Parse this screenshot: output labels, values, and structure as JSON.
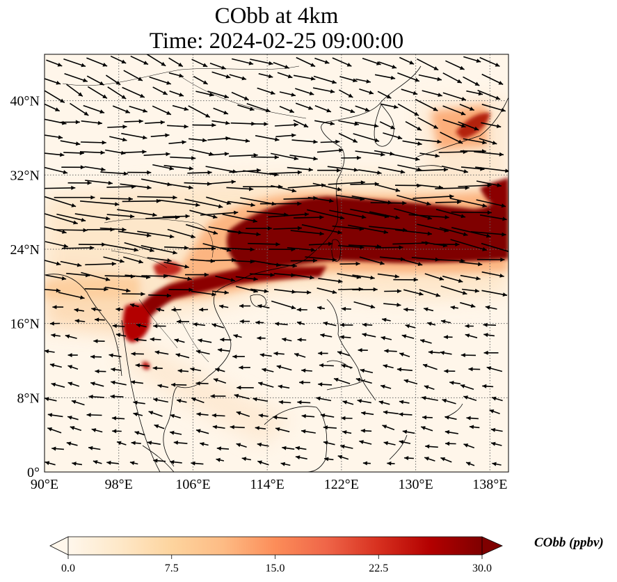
{
  "title_line1": "CObb at 4km",
  "title_line2": "Time: 2024-02-25 09:00:00",
  "map": {
    "lon_range": [
      90,
      140
    ],
    "lat_range": [
      0,
      45
    ],
    "x_ticks": [
      "90°E",
      "98°E",
      "106°E",
      "114°E",
      "122°E",
      "130°E",
      "138°E"
    ],
    "x_tick_values": [
      90,
      98,
      106,
      114,
      122,
      130,
      138
    ],
    "y_ticks": [
      "0°",
      "8°N",
      "16°N",
      "24°N",
      "32°N",
      "40°N"
    ],
    "y_tick_values": [
      0,
      8,
      16,
      24,
      32,
      40
    ],
    "gridlines": "dotted",
    "features": [
      "coastlines",
      "country borders",
      "CO concentration field",
      "wind vectors"
    ]
  },
  "colorbar": {
    "label": "CObb (ppbv)",
    "ticks": [
      "0.0",
      "7.5",
      "15.0",
      "22.5",
      "30.0"
    ],
    "tick_values": [
      0,
      7.5,
      15,
      22.5,
      30
    ],
    "range": [
      0,
      30
    ],
    "extend": "both",
    "colormap": "OrRd",
    "colors": [
      "#fff7ec",
      "#fee8c8",
      "#fdd49e",
      "#fdbb84",
      "#fc8d59",
      "#ef6548",
      "#d7301f",
      "#b30000",
      "#7f0000"
    ]
  },
  "plume": {
    "max_color": "#7f0000",
    "description_color_low": "#fff5e8"
  }
}
